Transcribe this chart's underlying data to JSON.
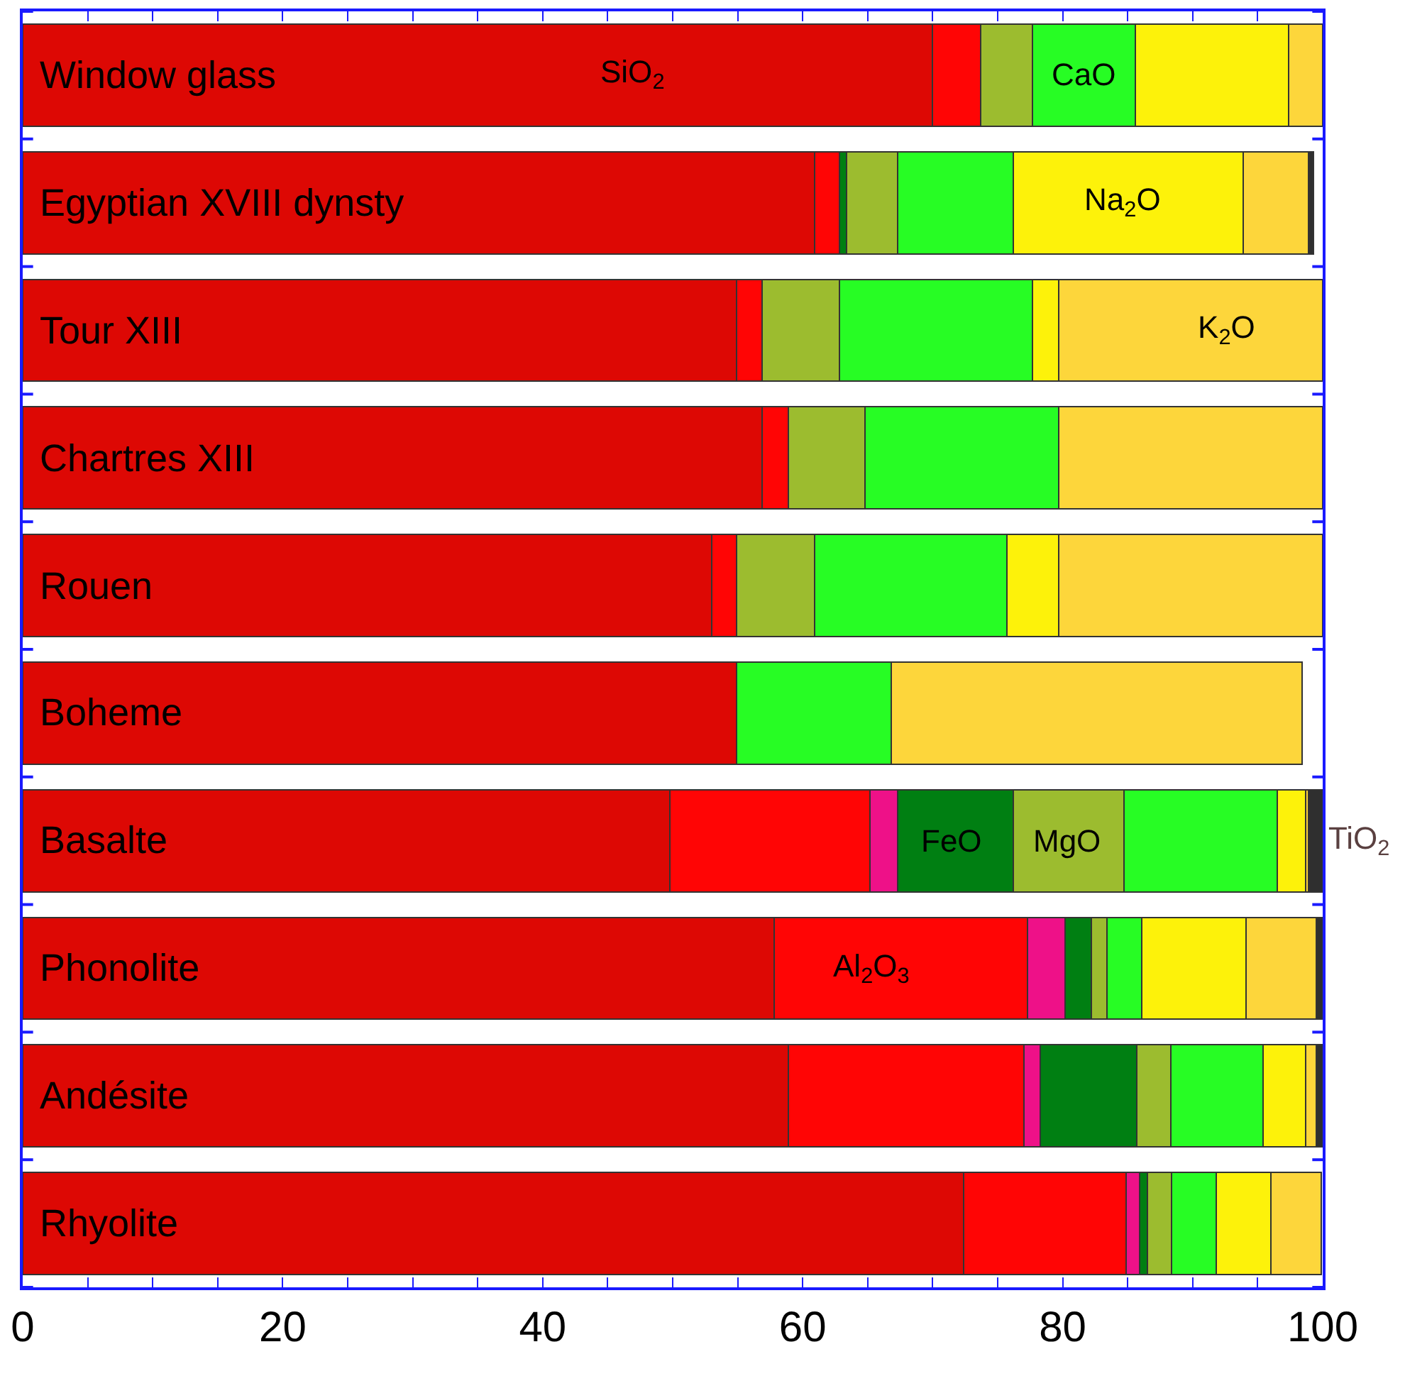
{
  "chart_data": {
    "type": "bar",
    "orientation": "horizontal",
    "stacked": true,
    "categories": [
      "Window glass",
      "Egyptian XVIII dynsty",
      "Tour XIII",
      "Chartres XIII",
      "Rouen",
      "Boheme",
      "Basalte",
      "Phonolite",
      "Andésite",
      "Rhyolite"
    ],
    "series": [
      {
        "color": "#dd0804",
        "values": [
          70.0,
          60.9,
          54.9,
          56.9,
          53.0,
          54.9,
          49.8,
          57.8,
          58.9,
          72.4
        ]
      },
      {
        "color": "#ff0505",
        "values": [
          3.7,
          1.9,
          2.0,
          2.0,
          1.9,
          0,
          15.4,
          19.5,
          18.1,
          12.5
        ]
      },
      {
        "color": "#ee1188",
        "values": [
          0,
          0,
          0,
          0,
          0,
          0,
          2.1,
          2.9,
          1.3,
          1.0
        ]
      },
      {
        "color": "#007f12",
        "values": [
          0,
          0.6,
          0,
          0,
          0,
          0,
          8.9,
          2.0,
          7.4,
          0.6
        ]
      },
      {
        "color": "#9cbc2f",
        "values": [
          4.0,
          3.9,
          5.9,
          5.9,
          6.0,
          0,
          8.5,
          1.2,
          2.6,
          1.9
        ]
      },
      {
        "color": "#27fd24",
        "values": [
          7.9,
          8.9,
          14.9,
          14.9,
          14.8,
          11.9,
          11.8,
          2.7,
          7.1,
          3.4
        ]
      },
      {
        "color": "#fdf20a",
        "values": [
          11.8,
          17.7,
          2.0,
          0,
          4.0,
          0,
          2.2,
          8.0,
          3.3,
          4.2
        ]
      },
      {
        "color": "#fdd63b",
        "values": [
          2.6,
          5.0,
          20.3,
          20.3,
          20.3,
          31.6,
          0.2,
          5.4,
          0.8,
          3.9
        ]
      },
      {
        "color": "#2f2f2f",
        "values": [
          0,
          0.4,
          0,
          0,
          0,
          0,
          1.1,
          0.5,
          0.5,
          0
        ]
      }
    ],
    "xlim": [
      0,
      100
    ],
    "xticks": [
      0,
      {
        "value": 5,
        "label": null
      },
      {
        "value": 10,
        "label": null
      },
      {
        "value": 15,
        "label": null
      },
      20,
      {
        "value": 25,
        "label": null
      },
      {
        "value": 30,
        "label": null
      },
      {
        "value": 35,
        "label": null
      },
      40,
      {
        "value": 45,
        "label": null
      },
      {
        "value": 50,
        "label": null
      },
      {
        "value": 55,
        "label": null
      },
      60,
      {
        "value": 65,
        "label": null
      },
      {
        "value": 70,
        "label": null
      },
      {
        "value": 75,
        "label": null
      },
      80,
      {
        "value": 85,
        "label": null
      },
      {
        "value": 90,
        "label": null
      },
      {
        "value": 95,
        "label": null
      },
      100
    ],
    "annotations": [
      {
        "text": "SiO$_{2}$",
        "x": 46.9,
        "y": "Window glass"
      },
      {
        "text": "CaO",
        "x": 81.6,
        "y": "Window glass"
      },
      {
        "text": "Na$_{2}$O",
        "x": 84.6,
        "y": "Egyptian XVIII dynsty"
      },
      {
        "text": "K$_{2}$O",
        "x": 92.6,
        "y": "Tour XIII"
      },
      {
        "text": "FeO",
        "x": 71.5,
        "y": "Basalte"
      },
      {
        "text": "MgO",
        "x": 80.4,
        "y": "Basalte"
      },
      {
        "text": "TiO$_{2}$",
        "x": 100,
        "y": "Basalte"
      },
      {
        "text": "Al$_{2}$O$_{3}$",
        "x": 65.3,
        "y": "Phonolite"
      }
    ],
    "grid": false
  }
}
